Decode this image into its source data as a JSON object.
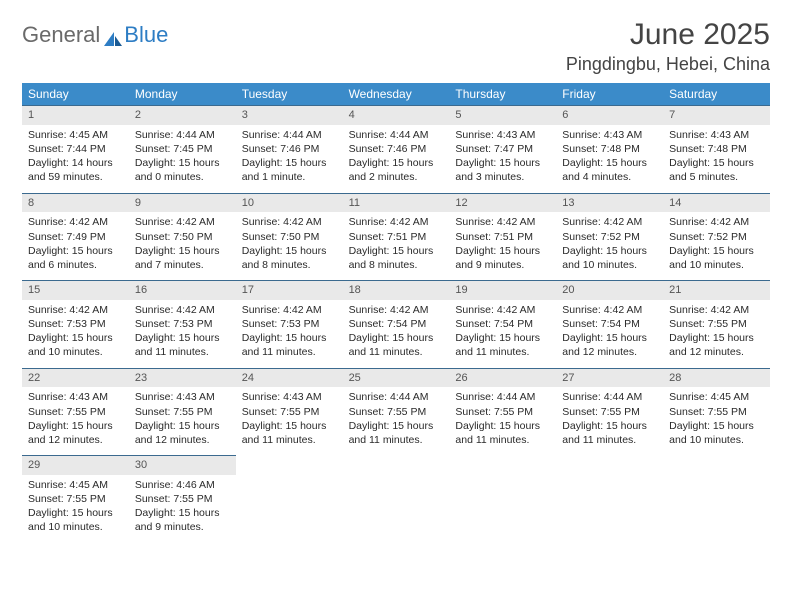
{
  "brand": {
    "part1": "General",
    "part2": "Blue"
  },
  "title": "June 2025",
  "location": "Pingdingbu, Hebei, China",
  "colors": {
    "header_bg": "#3b8bc9",
    "header_text": "#ffffff",
    "daynum_bg": "#e9e9e9",
    "daynum_border": "#3b6a8f",
    "text": "#2a2a2a",
    "title_color": "#444"
  },
  "fonts": {
    "title_size": 30,
    "location_size": 18,
    "header_size": 12,
    "body_size": 10.5
  },
  "dayHeaders": [
    "Sunday",
    "Monday",
    "Tuesday",
    "Wednesday",
    "Thursday",
    "Friday",
    "Saturday"
  ],
  "days": [
    {
      "n": "1",
      "sunrise": "Sunrise: 4:45 AM",
      "sunset": "Sunset: 7:44 PM",
      "daylight": "Daylight: 14 hours and 59 minutes."
    },
    {
      "n": "2",
      "sunrise": "Sunrise: 4:44 AM",
      "sunset": "Sunset: 7:45 PM",
      "daylight": "Daylight: 15 hours and 0 minutes."
    },
    {
      "n": "3",
      "sunrise": "Sunrise: 4:44 AM",
      "sunset": "Sunset: 7:46 PM",
      "daylight": "Daylight: 15 hours and 1 minute."
    },
    {
      "n": "4",
      "sunrise": "Sunrise: 4:44 AM",
      "sunset": "Sunset: 7:46 PM",
      "daylight": "Daylight: 15 hours and 2 minutes."
    },
    {
      "n": "5",
      "sunrise": "Sunrise: 4:43 AM",
      "sunset": "Sunset: 7:47 PM",
      "daylight": "Daylight: 15 hours and 3 minutes."
    },
    {
      "n": "6",
      "sunrise": "Sunrise: 4:43 AM",
      "sunset": "Sunset: 7:48 PM",
      "daylight": "Daylight: 15 hours and 4 minutes."
    },
    {
      "n": "7",
      "sunrise": "Sunrise: 4:43 AM",
      "sunset": "Sunset: 7:48 PM",
      "daylight": "Daylight: 15 hours and 5 minutes."
    },
    {
      "n": "8",
      "sunrise": "Sunrise: 4:42 AM",
      "sunset": "Sunset: 7:49 PM",
      "daylight": "Daylight: 15 hours and 6 minutes."
    },
    {
      "n": "9",
      "sunrise": "Sunrise: 4:42 AM",
      "sunset": "Sunset: 7:50 PM",
      "daylight": "Daylight: 15 hours and 7 minutes."
    },
    {
      "n": "10",
      "sunrise": "Sunrise: 4:42 AM",
      "sunset": "Sunset: 7:50 PM",
      "daylight": "Daylight: 15 hours and 8 minutes."
    },
    {
      "n": "11",
      "sunrise": "Sunrise: 4:42 AM",
      "sunset": "Sunset: 7:51 PM",
      "daylight": "Daylight: 15 hours and 8 minutes."
    },
    {
      "n": "12",
      "sunrise": "Sunrise: 4:42 AM",
      "sunset": "Sunset: 7:51 PM",
      "daylight": "Daylight: 15 hours and 9 minutes."
    },
    {
      "n": "13",
      "sunrise": "Sunrise: 4:42 AM",
      "sunset": "Sunset: 7:52 PM",
      "daylight": "Daylight: 15 hours and 10 minutes."
    },
    {
      "n": "14",
      "sunrise": "Sunrise: 4:42 AM",
      "sunset": "Sunset: 7:52 PM",
      "daylight": "Daylight: 15 hours and 10 minutes."
    },
    {
      "n": "15",
      "sunrise": "Sunrise: 4:42 AM",
      "sunset": "Sunset: 7:53 PM",
      "daylight": "Daylight: 15 hours and 10 minutes."
    },
    {
      "n": "16",
      "sunrise": "Sunrise: 4:42 AM",
      "sunset": "Sunset: 7:53 PM",
      "daylight": "Daylight: 15 hours and 11 minutes."
    },
    {
      "n": "17",
      "sunrise": "Sunrise: 4:42 AM",
      "sunset": "Sunset: 7:53 PM",
      "daylight": "Daylight: 15 hours and 11 minutes."
    },
    {
      "n": "18",
      "sunrise": "Sunrise: 4:42 AM",
      "sunset": "Sunset: 7:54 PM",
      "daylight": "Daylight: 15 hours and 11 minutes."
    },
    {
      "n": "19",
      "sunrise": "Sunrise: 4:42 AM",
      "sunset": "Sunset: 7:54 PM",
      "daylight": "Daylight: 15 hours and 11 minutes."
    },
    {
      "n": "20",
      "sunrise": "Sunrise: 4:42 AM",
      "sunset": "Sunset: 7:54 PM",
      "daylight": "Daylight: 15 hours and 12 minutes."
    },
    {
      "n": "21",
      "sunrise": "Sunrise: 4:42 AM",
      "sunset": "Sunset: 7:55 PM",
      "daylight": "Daylight: 15 hours and 12 minutes."
    },
    {
      "n": "22",
      "sunrise": "Sunrise: 4:43 AM",
      "sunset": "Sunset: 7:55 PM",
      "daylight": "Daylight: 15 hours and 12 minutes."
    },
    {
      "n": "23",
      "sunrise": "Sunrise: 4:43 AM",
      "sunset": "Sunset: 7:55 PM",
      "daylight": "Daylight: 15 hours and 12 minutes."
    },
    {
      "n": "24",
      "sunrise": "Sunrise: 4:43 AM",
      "sunset": "Sunset: 7:55 PM",
      "daylight": "Daylight: 15 hours and 11 minutes."
    },
    {
      "n": "25",
      "sunrise": "Sunrise: 4:44 AM",
      "sunset": "Sunset: 7:55 PM",
      "daylight": "Daylight: 15 hours and 11 minutes."
    },
    {
      "n": "26",
      "sunrise": "Sunrise: 4:44 AM",
      "sunset": "Sunset: 7:55 PM",
      "daylight": "Daylight: 15 hours and 11 minutes."
    },
    {
      "n": "27",
      "sunrise": "Sunrise: 4:44 AM",
      "sunset": "Sunset: 7:55 PM",
      "daylight": "Daylight: 15 hours and 11 minutes."
    },
    {
      "n": "28",
      "sunrise": "Sunrise: 4:45 AM",
      "sunset": "Sunset: 7:55 PM",
      "daylight": "Daylight: 15 hours and 10 minutes."
    },
    {
      "n": "29",
      "sunrise": "Sunrise: 4:45 AM",
      "sunset": "Sunset: 7:55 PM",
      "daylight": "Daylight: 15 hours and 10 minutes."
    },
    {
      "n": "30",
      "sunrise": "Sunrise: 4:46 AM",
      "sunset": "Sunset: 7:55 PM",
      "daylight": "Daylight: 15 hours and 9 minutes."
    }
  ]
}
